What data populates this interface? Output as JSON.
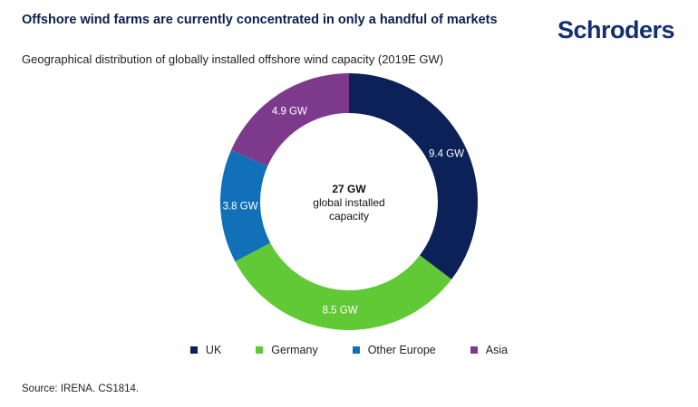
{
  "header": {
    "title": "Offshore wind farms are currently concentrated in only a handful of markets",
    "logo": "Schroders",
    "subtitle": "Geographical distribution of globally installed offshore wind capacity (2019E GW)"
  },
  "chart_data": {
    "type": "pie",
    "donut": true,
    "center_label": {
      "value": "27 GW",
      "line1": "global installed",
      "line2": "capacity"
    },
    "slices": [
      {
        "name": "UK",
        "value": 9.4,
        "label": "9.4 GW",
        "color": "#0c2158"
      },
      {
        "name": "Germany",
        "value": 8.5,
        "label": "8.5 GW",
        "color": "#62c936"
      },
      {
        "name": "Other Europe",
        "value": 3.8,
        "label": "3.8 GW",
        "color": "#1270b9"
      },
      {
        "name": "Asia",
        "value": 4.9,
        "label": "4.9 GW",
        "color": "#7d3a8d"
      }
    ],
    "legend_position": "bottom"
  },
  "footer": {
    "source": "Source: IRENA. CS1814."
  }
}
